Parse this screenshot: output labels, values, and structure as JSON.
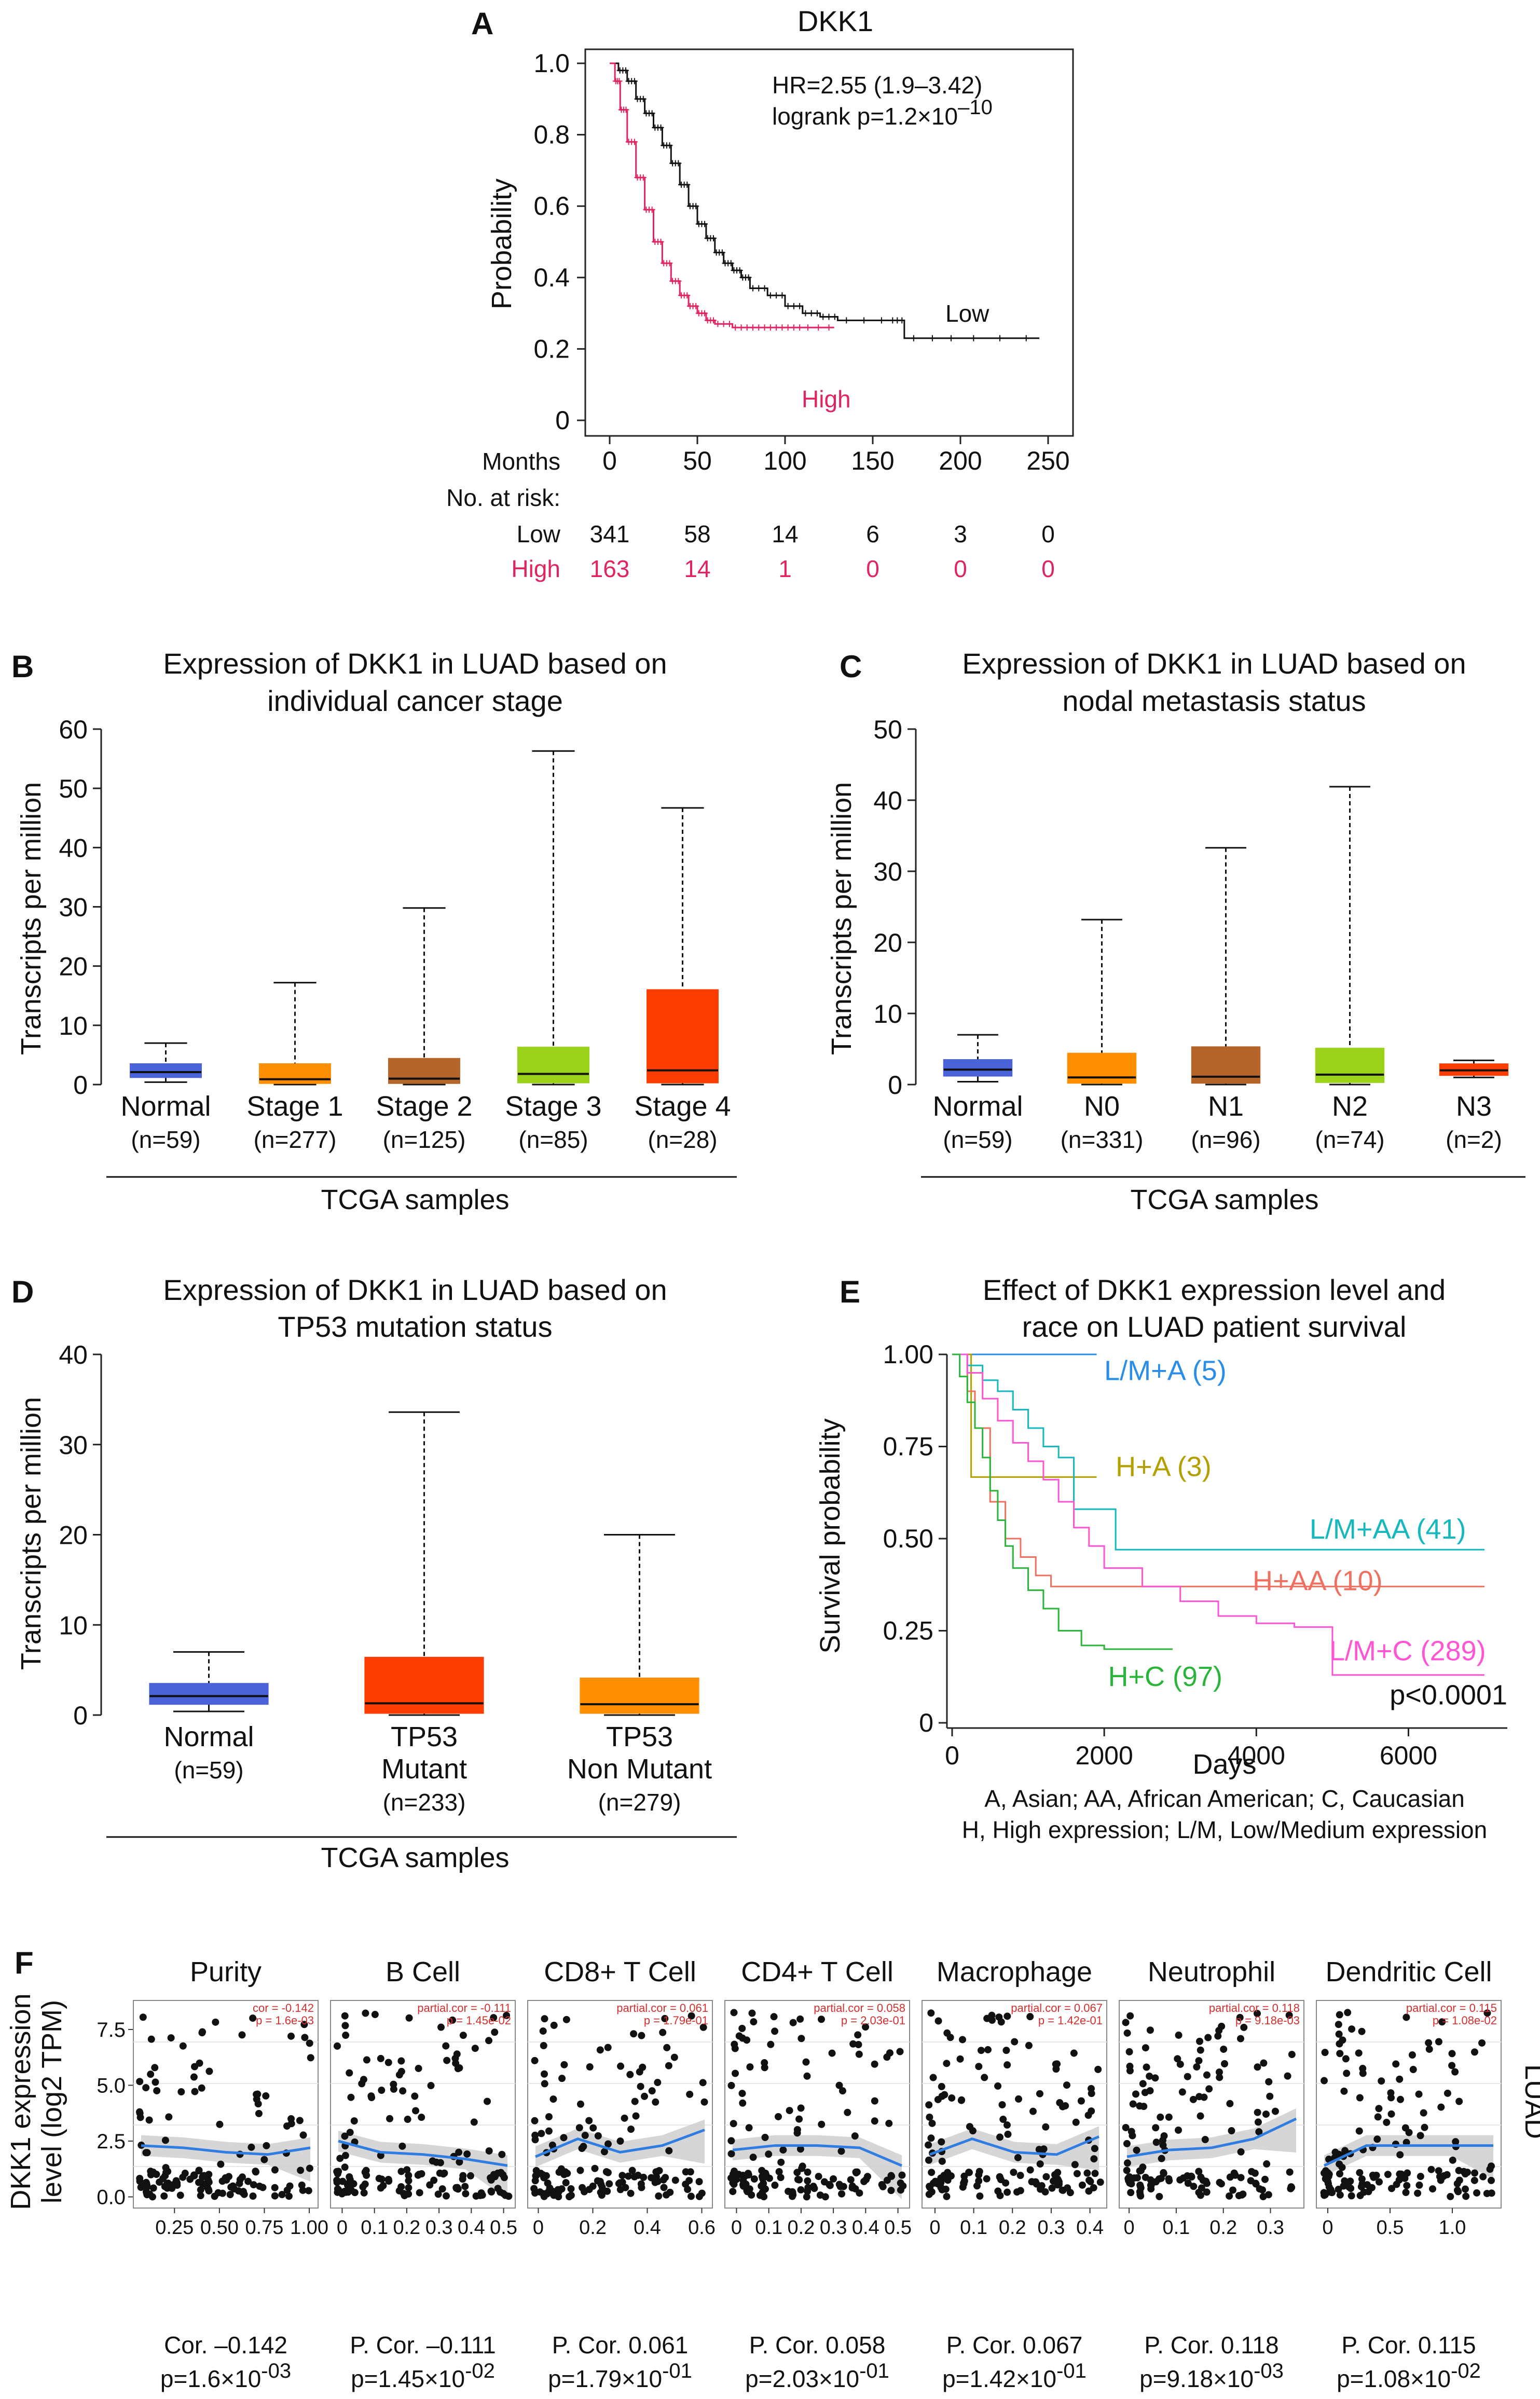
{
  "colors": {
    "high": "#e0245e",
    "low": "#111111",
    "normal": "#4a63d9",
    "stage1": "#ff8f00",
    "stage2": "#b5652a",
    "stage3": "#9bd21a",
    "stage4": "#ff3d00",
    "race_lma": "#2a8ee8",
    "race_ha": "#b3a000",
    "race_lmaa": "#16b8c0",
    "race_haa": "#f07060",
    "race_lmc": "#ff55d4",
    "race_hc": "#2bb43a",
    "fit": "#2f7de1"
  },
  "panelA": {
    "letter": "A",
    "chart_data": {
      "type": "line",
      "title": "DKK1",
      "ylabel": "Probability",
      "xlabel": "Months",
      "xlim": [
        0,
        250
      ],
      "ylim": [
        0,
        1.0
      ],
      "xticks": [
        "0",
        "50",
        "100",
        "150",
        "200",
        "250"
      ],
      "yticks": [
        "0",
        "0.2",
        "0.4",
        "0.6",
        "0.8",
        "1.0"
      ],
      "hr_text": "HR=2.55 (1.9–3.42)",
      "logrank_prefix": "logrank p=1.2×10",
      "logrank_exp": "–10",
      "series": [
        {
          "name": "Low",
          "x": [
            0,
            5,
            10,
            15,
            20,
            25,
            30,
            35,
            40,
            45,
            50,
            55,
            60,
            65,
            70,
            75,
            80,
            90,
            100,
            110,
            120,
            130,
            160,
            168,
            200,
            245
          ],
          "y": [
            1.0,
            0.98,
            0.95,
            0.9,
            0.86,
            0.82,
            0.77,
            0.72,
            0.66,
            0.6,
            0.55,
            0.51,
            0.47,
            0.44,
            0.42,
            0.4,
            0.37,
            0.35,
            0.32,
            0.3,
            0.29,
            0.28,
            0.28,
            0.23,
            0.23,
            0.23
          ]
        },
        {
          "name": "High",
          "x": [
            0,
            3,
            6,
            10,
            15,
            20,
            25,
            30,
            35,
            40,
            45,
            50,
            55,
            60,
            70,
            80,
            90,
            100,
            110,
            128
          ],
          "y": [
            1.0,
            0.95,
            0.87,
            0.78,
            0.68,
            0.59,
            0.5,
            0.44,
            0.39,
            0.35,
            0.32,
            0.3,
            0.28,
            0.27,
            0.26,
            0.26,
            0.26,
            0.26,
            0.26,
            0.26
          ]
        }
      ]
    },
    "risk": {
      "months_label": "Months",
      "header": "No. at risk:",
      "low_label": "Low",
      "high_label": "High",
      "low_values": [
        "341",
        "58",
        "14",
        "6",
        "3",
        "0"
      ],
      "high_values": [
        "163",
        "14",
        "1",
        "0",
        "0",
        "0"
      ]
    },
    "low_label": "Low",
    "high_label": "High"
  },
  "panelB": {
    "letter": "B",
    "chart_data": {
      "type": "box",
      "title_line1": "Expression of DKK1 in LUAD based on",
      "title_line2": "individual cancer stage",
      "ylabel": "Transcripts per million",
      "xlabel": "TCGA samples",
      "ylim": [
        0,
        60
      ],
      "yticks": [
        "0",
        "10",
        "20",
        "30",
        "40",
        "50",
        "60"
      ],
      "boxes": [
        {
          "label": "Normal",
          "n": "(n=59)",
          "min": 0.4,
          "q1": 1.2,
          "median": 2.1,
          "q3": 3.5,
          "max": 7.0,
          "color": "#4a63d9"
        },
        {
          "label": "Stage 1",
          "n": "(n=277)",
          "min": 0,
          "q1": 0.2,
          "median": 0.9,
          "q3": 3.5,
          "max": 17.2,
          "color": "#ff8f00"
        },
        {
          "label": "Stage 2",
          "n": "(n=125)",
          "min": 0,
          "q1": 0.2,
          "median": 1.0,
          "q3": 4.4,
          "max": 29.8,
          "color": "#b5652a"
        },
        {
          "label": "Stage 3",
          "n": "(n=85)",
          "min": 0,
          "q1": 0.3,
          "median": 1.8,
          "q3": 6.3,
          "max": 56.3,
          "color": "#9bd21a"
        },
        {
          "label": "Stage 4",
          "n": "(n=28)",
          "min": 0,
          "q1": 0.3,
          "median": 2.4,
          "q3": 16.0,
          "max": 46.7,
          "color": "#ff3d00"
        }
      ]
    }
  },
  "panelC": {
    "letter": "C",
    "chart_data": {
      "type": "box",
      "title_line1": "Expression of DKK1 in LUAD based on",
      "title_line2": "nodal metastasis status",
      "ylabel": "Transcripts per million",
      "xlabel": "TCGA samples",
      "ylim": [
        0,
        50
      ],
      "yticks": [
        "0",
        "10",
        "20",
        "30",
        "40",
        "50"
      ],
      "boxes": [
        {
          "label": "Normal",
          "n": "(n=59)",
          "min": 0.4,
          "q1": 1.2,
          "median": 2.1,
          "q3": 3.5,
          "max": 7.0,
          "color": "#4a63d9"
        },
        {
          "label": "N0",
          "n": "(n=331)",
          "min": 0,
          "q1": 0.2,
          "median": 1.0,
          "q3": 4.4,
          "max": 23.2,
          "color": "#ff8f00"
        },
        {
          "label": "N1",
          "n": "(n=96)",
          "min": 0,
          "q1": 0.2,
          "median": 1.1,
          "q3": 5.3,
          "max": 33.3,
          "color": "#b5652a"
        },
        {
          "label": "N2",
          "n": "(n=74)",
          "min": 0,
          "q1": 0.3,
          "median": 1.4,
          "q3": 5.1,
          "max": 41.9,
          "color": "#9bd21a"
        },
        {
          "label": "N3",
          "n": "(n=2)",
          "min": 1.0,
          "q1": 1.3,
          "median": 2.0,
          "q3": 2.9,
          "max": 3.4,
          "color": "#ff3d00"
        }
      ]
    }
  },
  "panelD": {
    "letter": "D",
    "chart_data": {
      "type": "box",
      "title_line1": "Expression of DKK1 in LUAD based on",
      "title_line2": "TP53 mutation status",
      "ylabel": "Transcripts per million",
      "xlabel": "TCGA samples",
      "ylim": [
        0,
        40
      ],
      "yticks": [
        "0",
        "10",
        "20",
        "30",
        "40"
      ],
      "boxes": [
        {
          "label": "Normal",
          "label2": "",
          "n": "(n=59)",
          "min": 0.4,
          "q1": 1.2,
          "median": 2.1,
          "q3": 3.5,
          "max": 7.0,
          "color": "#4a63d9"
        },
        {
          "label": "TP53",
          "label2": "Mutant",
          "n": "(n=233)",
          "min": 0,
          "q1": 0.2,
          "median": 1.3,
          "q3": 6.4,
          "max": 33.6,
          "color": "#ff3d00"
        },
        {
          "label": "TP53",
          "label2": "Non Mutant",
          "n": "(n=279)",
          "min": 0,
          "q1": 0.2,
          "median": 1.2,
          "q3": 4.1,
          "max": 20.0,
          "color": "#ff8f00"
        }
      ]
    }
  },
  "panelE": {
    "letter": "E",
    "chart_data": {
      "type": "line",
      "title_line1": "Effect of DKK1 expression level and",
      "title_line2": "race on LUAD patient survival",
      "ylabel": "Survival probability",
      "xlabel": "Days",
      "xlim": [
        0,
        7300
      ],
      "ylim": [
        0,
        1.0
      ],
      "xticks": [
        "0",
        "2000",
        "4000",
        "6000"
      ],
      "yticks": [
        "0",
        "0.25",
        "0.50",
        "0.75",
        "1.00"
      ],
      "pvalue": "p<0.0001",
      "legend_line1": "A, Asian; AA, African American; C, Caucasian",
      "legend_line2": "H, High expression; L/M, Low/Medium expression",
      "series": [
        {
          "name": "L/M+A (5)",
          "color": "#2a8ee8",
          "x": [
            0,
            1900
          ],
          "y": [
            1.0,
            1.0
          ]
        },
        {
          "name": "H+A (3)",
          "color": "#b3a000",
          "x": [
            0,
            150,
            250,
            1900
          ],
          "y": [
            1.0,
            1.0,
            0.667,
            0.667
          ]
        },
        {
          "name": "L/M+AA (41)",
          "color": "#16b8c0",
          "x": [
            0,
            200,
            400,
            600,
            800,
            1000,
            1200,
            1400,
            1600,
            2100,
            2150,
            7000
          ],
          "y": [
            1.0,
            0.97,
            0.93,
            0.9,
            0.85,
            0.8,
            0.75,
            0.72,
            0.58,
            0.58,
            0.47,
            0.47
          ]
        },
        {
          "name": "H+AA (10)",
          "color": "#f07060",
          "x": [
            0,
            200,
            300,
            500,
            700,
            900,
            1100,
            1300,
            7000
          ],
          "y": [
            1.0,
            0.9,
            0.8,
            0.6,
            0.5,
            0.45,
            0.4,
            0.37,
            0.37
          ]
        },
        {
          "name": "L/M+C (289)",
          "color": "#ff55d4",
          "x": [
            0,
            200,
            400,
            600,
            800,
            1000,
            1200,
            1400,
            1600,
            1800,
            2000,
            2500,
            3000,
            3500,
            4000,
            4500,
            4950,
            5000,
            7000
          ],
          "y": [
            1.0,
            0.95,
            0.88,
            0.82,
            0.76,
            0.71,
            0.66,
            0.6,
            0.53,
            0.48,
            0.42,
            0.37,
            0.33,
            0.29,
            0.27,
            0.26,
            0.26,
            0.13,
            0.13
          ]
        },
        {
          "name": "H+C (97)",
          "color": "#2bb43a",
          "x": [
            0,
            100,
            200,
            300,
            400,
            500,
            600,
            700,
            800,
            1000,
            1200,
            1400,
            1700,
            2000,
            2900
          ],
          "y": [
            1.0,
            0.94,
            0.87,
            0.8,
            0.72,
            0.63,
            0.55,
            0.48,
            0.42,
            0.36,
            0.31,
            0.25,
            0.21,
            0.2,
            0.2
          ]
        }
      ]
    }
  },
  "panelF": {
    "letter": "F",
    "row_label": "LUAD",
    "ylabel_line1": "DKK1 expression",
    "ylabel_line2": "level (log2 TPM)",
    "yticks": [
      "0.0",
      "2.5",
      "5.0",
      "7.5"
    ],
    "chart_data": [
      {
        "type": "scatter",
        "title": "Purity",
        "corr_line1": "cor = -0.142",
        "corr_line2": "p = 1.6e-03",
        "xticks": [
          "0.25",
          "0.50",
          "0.75",
          "1.00"
        ],
        "xrange": [
          0.05,
          1.02
        ],
        "xtickvals": [
          0.25,
          0.5,
          0.75,
          1.0
        ],
        "fit": [
          2.3,
          2.2,
          2.0,
          1.9,
          2.2
        ],
        "label": "Cor. –0.142",
        "p_prefix": "p=1.6×10",
        "p_exp": "-03"
      },
      {
        "type": "scatter",
        "title": "B Cell",
        "corr_line1": "partial.cor = -0.111",
        "corr_line2": "p = 1.45e-02",
        "xticks": [
          "0",
          "0.1",
          "0.2",
          "0.3",
          "0.4",
          "0.5"
        ],
        "xrange": [
          -0.02,
          0.52
        ],
        "xtickvals": [
          0,
          0.1,
          0.2,
          0.3,
          0.4,
          0.5
        ],
        "fit": [
          2.5,
          2.0,
          1.9,
          1.7,
          1.4
        ],
        "label": "P. Cor. –0.111",
        "p_prefix": "p=1.45×10",
        "p_exp": "-02"
      },
      {
        "type": "scatter",
        "title": "CD8+ T Cell",
        "corr_line1": "partial.cor = 0.061",
        "corr_line2": "p = 1.79e-01",
        "xticks": [
          "0",
          "0.2",
          "0.4",
          "0.6"
        ],
        "xrange": [
          -0.02,
          0.62
        ],
        "xtickvals": [
          0,
          0.2,
          0.4,
          0.6
        ],
        "fit": [
          1.8,
          2.6,
          2.0,
          2.3,
          3.0
        ],
        "label": "P. Cor. 0.061",
        "p_prefix": "p=1.79×10",
        "p_exp": "-01"
      },
      {
        "type": "scatter",
        "title": "CD4+ T Cell",
        "corr_line1": "partial.cor = 0.058",
        "corr_line2": "p = 2.03e-01",
        "xticks": [
          "0",
          "0.1",
          "0.2",
          "0.3",
          "0.4",
          "0.5"
        ],
        "xrange": [
          -0.02,
          0.52
        ],
        "xtickvals": [
          0,
          0.1,
          0.2,
          0.3,
          0.4,
          0.5
        ],
        "fit": [
          2.1,
          2.3,
          2.3,
          2.2,
          1.4
        ],
        "label": "P. Cor. 0.058",
        "p_prefix": "p=2.03×10",
        "p_exp": "-01"
      },
      {
        "type": "scatter",
        "title": "Macrophage",
        "corr_line1": "partial.cor = 0.067",
        "corr_line2": "p = 1.42e-01",
        "xticks": [
          "0",
          "0.1",
          "0.2",
          "0.3",
          "0.4"
        ],
        "xrange": [
          -0.02,
          0.43
        ],
        "xtickvals": [
          0,
          0.1,
          0.2,
          0.3,
          0.4
        ],
        "fit": [
          1.9,
          2.6,
          2.0,
          1.9,
          2.7
        ],
        "label": "P. Cor. 0.067",
        "p_prefix": "p=1.42×10",
        "p_exp": "-01"
      },
      {
        "type": "scatter",
        "title": "Neutrophil",
        "corr_line1": "partial.cor = 0.118",
        "corr_line2": "p = 9.18e-03",
        "xticks": [
          "0",
          "0.1",
          "0.2",
          "0.3"
        ],
        "xrange": [
          -0.01,
          0.36
        ],
        "xtickvals": [
          0,
          0.1,
          0.2,
          0.3
        ],
        "fit": [
          1.8,
          2.1,
          2.2,
          2.6,
          3.5
        ],
        "label": "P. Cor. 0.118",
        "p_prefix": "p=9.18×10",
        "p_exp": "-03"
      },
      {
        "type": "scatter",
        "title": "Dendritic Cell",
        "corr_line1": "partial.cor = 0.115",
        "corr_line2": "p = 1.08e-02",
        "xticks": [
          "0",
          "0.5",
          "1.0"
        ],
        "xrange": [
          -0.05,
          1.35
        ],
        "xtickvals": [
          0,
          0.5,
          1.0
        ],
        "fit": [
          1.4,
          2.3,
          2.3,
          2.3,
          2.3
        ],
        "label": "P. Cor. 0.115",
        "p_prefix": "p=1.08×10",
        "p_exp": "-02"
      }
    ]
  }
}
